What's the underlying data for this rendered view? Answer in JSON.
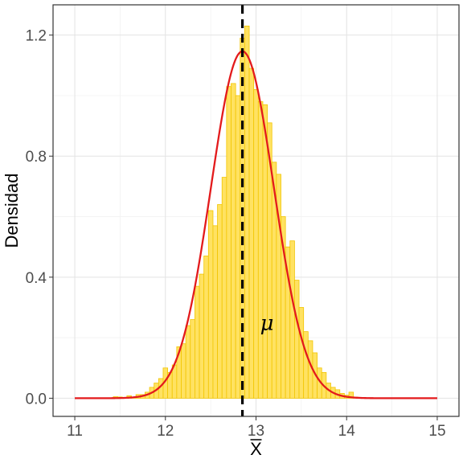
{
  "chart_data": {
    "type": "bar",
    "xlabel": "X",
    "ylabel": "Densidad",
    "xlim": [
      10.76,
      15.24
    ],
    "ylim": [
      -0.06,
      1.3
    ],
    "x_ticks": [
      "11",
      "12",
      "13",
      "14",
      "15"
    ],
    "y_ticks": [
      "0.0",
      "0.4",
      "0.8",
      "1.2"
    ],
    "grid": true,
    "histogram": {
      "bin_width": 0.05,
      "fill_color": "#FFE262",
      "edge_color": "#F2C500",
      "bins": [
        [
          11.45,
          0.005
        ],
        [
          11.5,
          0.004
        ],
        [
          11.55,
          0.0
        ],
        [
          11.6,
          0.008
        ],
        [
          11.65,
          0.004
        ],
        [
          11.7,
          0.012
        ],
        [
          11.75,
          0.012
        ],
        [
          11.8,
          0.02
        ],
        [
          11.85,
          0.036
        ],
        [
          11.9,
          0.05
        ],
        [
          11.95,
          0.065
        ],
        [
          12.0,
          0.1
        ],
        [
          12.05,
          0.085
        ],
        [
          12.1,
          0.11
        ],
        [
          12.15,
          0.17
        ],
        [
          12.2,
          0.18
        ],
        [
          12.25,
          0.24
        ],
        [
          12.3,
          0.26
        ],
        [
          12.35,
          0.37
        ],
        [
          12.4,
          0.41
        ],
        [
          12.45,
          0.47
        ],
        [
          12.5,
          0.62
        ],
        [
          12.55,
          0.57
        ],
        [
          12.6,
          0.64
        ],
        [
          12.65,
          0.73
        ],
        [
          12.7,
          1.03
        ],
        [
          12.75,
          1.04
        ],
        [
          12.8,
          1.0
        ],
        [
          12.85,
          1.19
        ],
        [
          12.9,
          1.23
        ],
        [
          12.95,
          1.09
        ],
        [
          13.0,
          1.02
        ],
        [
          13.05,
          0.98
        ],
        [
          13.1,
          0.97
        ],
        [
          13.15,
          0.91
        ],
        [
          13.2,
          0.78
        ],
        [
          13.25,
          0.74
        ],
        [
          13.3,
          0.6
        ],
        [
          13.35,
          0.5
        ],
        [
          13.4,
          0.52
        ],
        [
          13.45,
          0.39
        ],
        [
          13.5,
          0.3
        ],
        [
          13.55,
          0.22
        ],
        [
          13.6,
          0.19
        ],
        [
          13.65,
          0.15
        ],
        [
          13.7,
          0.1
        ],
        [
          13.75,
          0.085
        ],
        [
          13.8,
          0.05
        ],
        [
          13.85,
          0.036
        ],
        [
          13.9,
          0.028
        ],
        [
          13.95,
          0.016
        ],
        [
          14.0,
          0.01
        ],
        [
          14.05,
          0.02
        ],
        [
          14.1,
          0.004
        ]
      ]
    },
    "density_curve": {
      "type": "normal",
      "mean": 12.85,
      "sd": 0.348,
      "x_range": [
        11.0,
        15.0
      ],
      "color": "#E31A1C"
    },
    "reference_line": {
      "x": 12.85,
      "style": "dashed",
      "color": "#000000",
      "label": "μ",
      "label_position": [
        13.12,
        0.25
      ]
    }
  }
}
